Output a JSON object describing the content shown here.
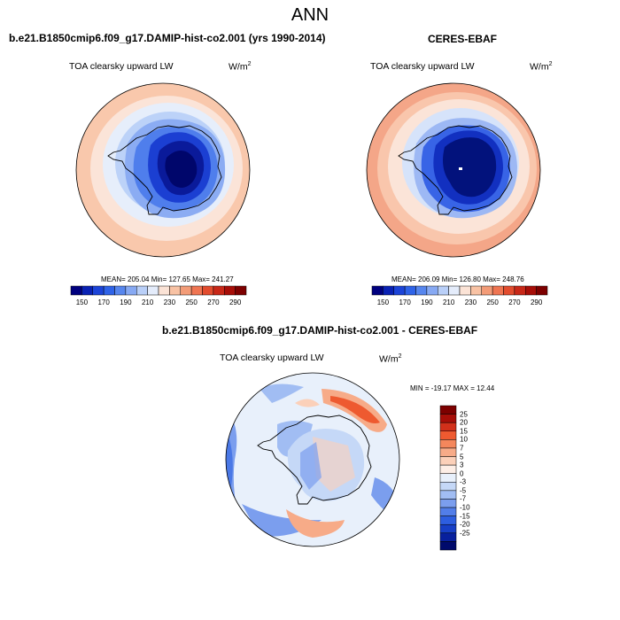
{
  "page_title": "ANN",
  "panel_model": {
    "case": "b.e21.B1850cmip6.f09_g17.DAMIP-hist-co2.001 (yrs 1990-2014)",
    "variable": "TOA clearsky upward LW",
    "units": "W/m",
    "units_exp": "2",
    "stats": "MEAN= 205.04  Min= 127.65  Max= 241.27"
  },
  "panel_obs": {
    "case": "CERES-EBAF",
    "variable": "TOA clearsky upward LW",
    "units": "W/m",
    "units_exp": "2",
    "stats": "MEAN= 206.09  Min= 126.80  Max= 248.76"
  },
  "panel_diff": {
    "case": "b.e21.B1850cmip6.f09_g17.DAMIP-hist-co2.001 - CERES-EBAF",
    "variable": "TOA clearsky upward LW",
    "units": "W/m",
    "units_exp": "2",
    "stats": "MIN = -19.17 MAX =  12.44"
  },
  "abs_colorbar": {
    "colors": [
      "#00007f",
      "#0a22b4",
      "#1c44d8",
      "#2f63e8",
      "#5786ee",
      "#87a9f3",
      "#b9cff8",
      "#e4ecfb",
      "#fbe3d6",
      "#f8c2a4",
      "#f39c78",
      "#ef7552",
      "#e24c2e",
      "#c82818",
      "#a70e08",
      "#7d0000"
    ],
    "tick_labels": [
      "150",
      "170",
      "190",
      "210",
      "230",
      "250",
      "270",
      "290"
    ],
    "tick_after_box": [
      1,
      3,
      5,
      7,
      9,
      11,
      13,
      15
    ]
  },
  "diff_colorbar": {
    "colors": [
      "#7d0000",
      "#a70e08",
      "#d2301a",
      "#ee5a30",
      "#f4875c",
      "#f7ab88",
      "#fbd0b9",
      "#fdeee6",
      "#e8f0fb",
      "#c5d8f7",
      "#a1bdf3",
      "#7b9eee",
      "#527ee9",
      "#2d5ee0",
      "#173fc6",
      "#08209d",
      "#000a6c"
    ],
    "tick_labels": [
      "25",
      "20",
      "15",
      "10",
      "7",
      "5",
      "3",
      "0",
      "-3",
      "-5",
      "-7",
      "-10",
      "-15",
      "-20",
      "-25"
    ]
  },
  "legend_colors": {
    "antarctic_interior": "#0d1f9e",
    "coastal_blue": "#3d6de8",
    "ocean_light": "#fbd4bf",
    "diff_positive": "#f08a62",
    "diff_negative": "#5b85ea"
  }
}
